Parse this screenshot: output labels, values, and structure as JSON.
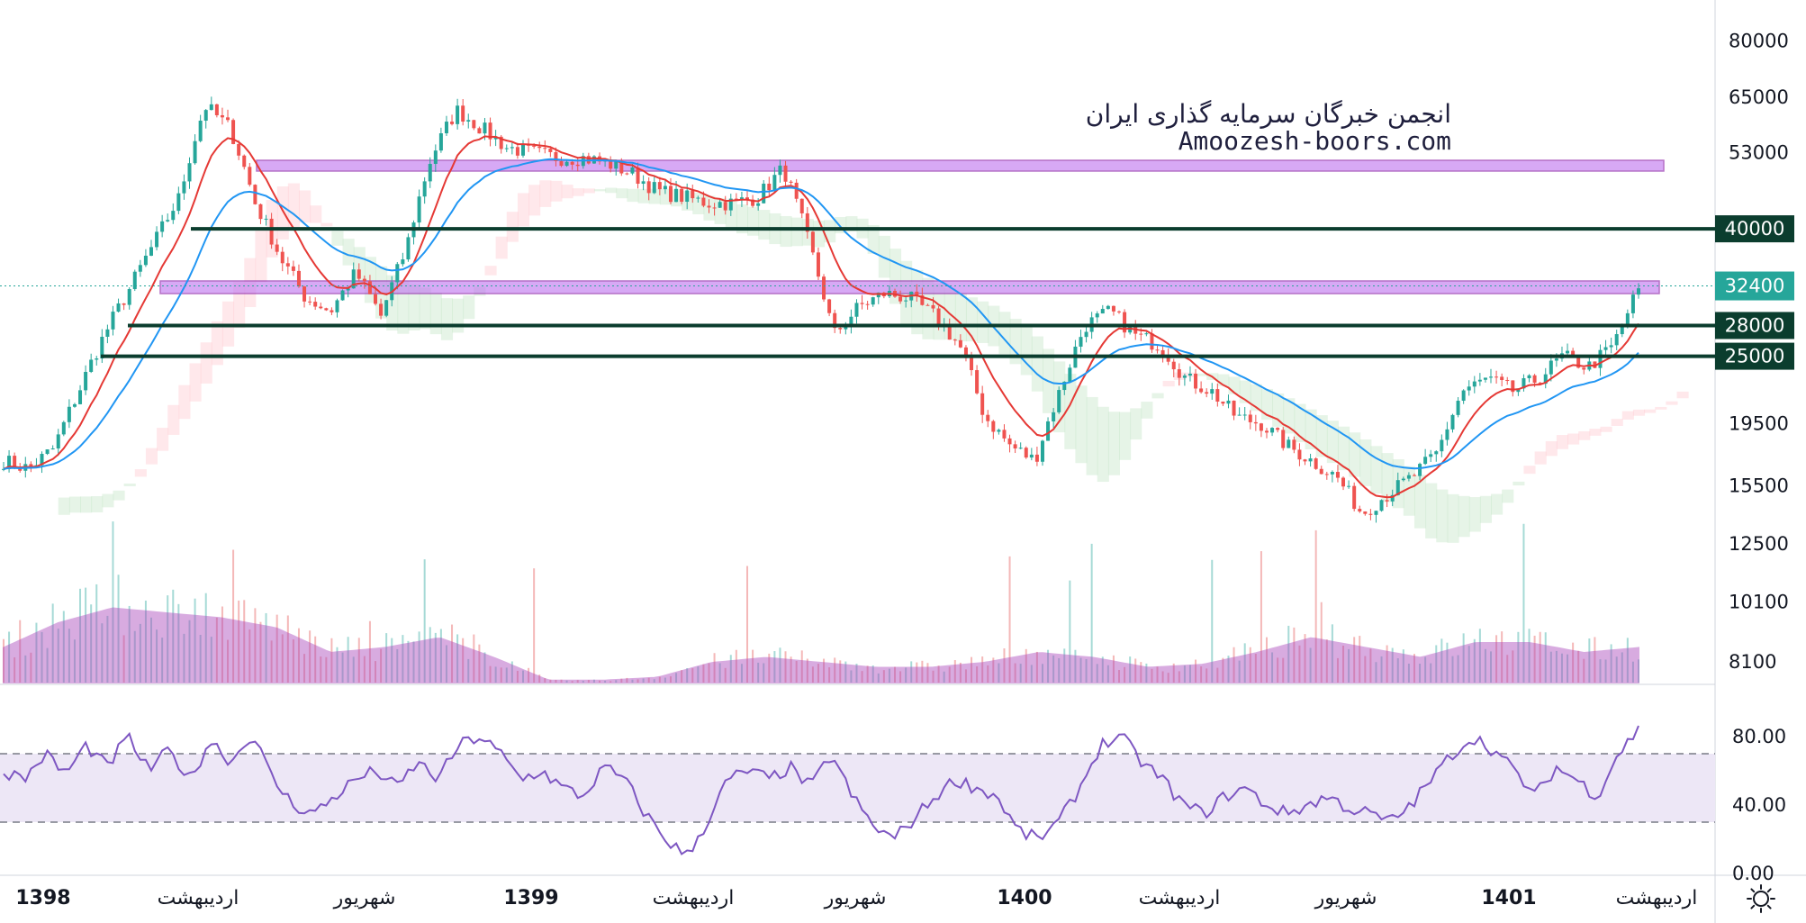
{
  "watermark": {
    "line1": "انجمن خبرگان سرمایه گذاری ایران",
    "line2": "Amoozesh-boors.com"
  },
  "settings_icon": "gear-icon",
  "colors": {
    "up": "#26a69a",
    "down": "#ef5350",
    "ema_fast": "#e53935",
    "ema_slow": "#2196f3",
    "zone": "#c27cf0",
    "support_line": "#0b3d2e",
    "rsi": "#7e57c2",
    "rsi_band": "#ede7f6",
    "volume_ma": "#ab47bc",
    "last_price": "#26a69a"
  },
  "chart_data": [
    {
      "type": "line",
      "subtype": "candlestick-with-overlays",
      "y_scale": "log",
      "ylim": [
        7500,
        90000
      ],
      "y_ticks": [
        80000,
        65000,
        53000,
        40000,
        32400,
        28000,
        25000,
        19500,
        15500,
        12500,
        10100,
        8100
      ],
      "x_ticks": [
        {
          "label": "1398",
          "bold": true
        },
        {
          "label": "اردیبهشت",
          "bold": false
        },
        {
          "label": "شهریور",
          "bold": false
        },
        {
          "label": "1399",
          "bold": true
        },
        {
          "label": "اردیبهشت",
          "bold": false
        },
        {
          "label": "شهریور",
          "bold": false
        },
        {
          "label": "1400",
          "bold": true
        },
        {
          "label": "اردیبهشت",
          "bold": false
        },
        {
          "label": "شهریور",
          "bold": false
        },
        {
          "label": "1401",
          "bold": true
        },
        {
          "label": "اردیبهشت",
          "bold": false
        }
      ],
      "series": [
        {
          "values": [
            17000,
            16500,
            17800,
            22000,
            27000,
            32000,
            38000,
            45000,
            63000,
            58000,
            44000,
            36000,
            31000,
            29500,
            34000,
            29000,
            37000,
            52000,
            62000,
            58000,
            54000,
            53000,
            52000,
            52000,
            51000,
            49000,
            46000,
            45000,
            44000,
            44000,
            45000,
            50000,
            38000,
            27000,
            30000,
            31500,
            31000,
            29000,
            26000,
            20000,
            18000,
            17000,
            22000,
            28000,
            29500,
            27000,
            26000,
            23000,
            22000,
            20000,
            19500,
            18000,
            17000,
            16000,
            14000,
            15000,
            16000,
            17500,
            22000,
            23000,
            22000,
            23000,
            25000,
            24000,
            26000,
            32000
          ]
        }
      ],
      "levels": [
        {
          "label": "40000",
          "value": 40000,
          "kind": "line"
        },
        {
          "label": "28000",
          "value": 28000,
          "kind": "line"
        },
        {
          "label": "25000",
          "value": 25000,
          "kind": "line"
        }
      ],
      "zones": [
        {
          "from": 49500,
          "to": 51500
        },
        {
          "from": 31500,
          "to": 33000
        }
      ],
      "last_price": {
        "label": "32400",
        "value": 32400
      },
      "volume_ma": [
        0.35,
        0.6,
        0.75,
        0.7,
        0.65,
        0.55,
        0.3,
        0.35,
        0.45,
        0.25,
        0.02,
        0.02,
        0.05,
        0.2,
        0.25,
        0.2,
        0.15,
        0.15,
        0.2,
        0.3,
        0.25,
        0.15,
        0.18,
        0.3,
        0.45,
        0.35,
        0.25,
        0.4,
        0.4,
        0.3,
        0.35
      ]
    },
    {
      "type": "line",
      "subtype": "rsi",
      "ylim": [
        0,
        100
      ],
      "y_ticks": [
        "80.00",
        "40.00",
        "0.00"
      ],
      "band": [
        30,
        70
      ],
      "series": [
        {
          "values": [
            60,
            55,
            70,
            58,
            75,
            62,
            80,
            60,
            72,
            55,
            78,
            65,
            82,
            55,
            40,
            35,
            45,
            55,
            60,
            50,
            65,
            55,
            75,
            80,
            70,
            55,
            60,
            50,
            45,
            62,
            55,
            35,
            20,
            10,
            30,
            55,
            60,
            55,
            62,
            50,
            70,
            45,
            28,
            20,
            32,
            45,
            55,
            50,
            45,
            25,
            20,
            30,
            50,
            75,
            80,
            65,
            55,
            40,
            35,
            45,
            50,
            40,
            35,
            40,
            45,
            38,
            35,
            30,
            40,
            55,
            70,
            80,
            72,
            60,
            45,
            62,
            55,
            45,
            70,
            84
          ]
        }
      ]
    }
  ]
}
